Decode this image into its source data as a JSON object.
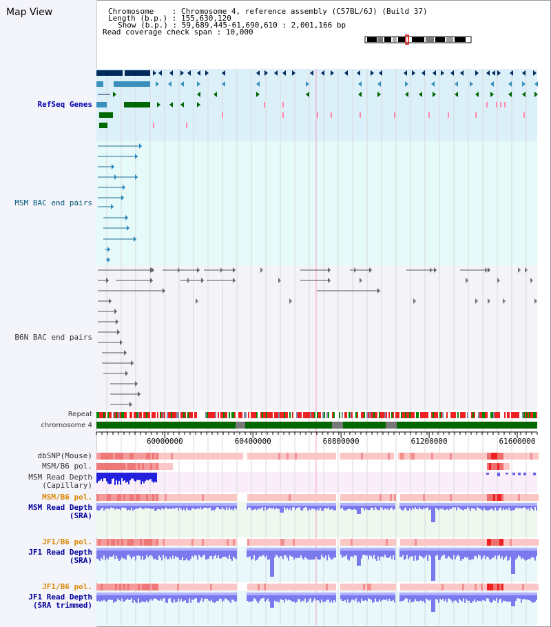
{
  "map_view": {
    "title": "Map View"
  },
  "header": {
    "chromosome_label": "Chromosome",
    "chromosome_value": "Chromosome 4, reference assembly (C57BL/6J) (Build 37)",
    "length_label": "Length (b.p.)",
    "length_value": "155,630,120",
    "show_label": "Show (b.p.)",
    "show_value": "59,689,445-61,690,610 : 2,001,166 bp",
    "coverage_label": "Read coverage check span",
    "coverage_value": "10,000"
  },
  "tracks": {
    "refseq": "RefSeq Genes",
    "msm_bac": "MSM BAC end pairs",
    "b6n_bac": "B6N BAC end pairs",
    "repeat": "Repeat",
    "chromosome": "chromosome 4",
    "dbsnp": "dbSNP(Mouse)",
    "msm_b6_pol": "MSM/B6 pol.",
    "msm_rd_cap_1": "MSM Read Depth",
    "msm_rd_cap_2": "(Capillary)",
    "msm_b6_pol2": "MSM/B6 pol.",
    "msm_rd_sra_1": "MSM Read Depth",
    "msm_rd_sra_2": "(SRA)",
    "jf1_b6_pol": "JF1/B6 pol.",
    "jf1_rd_sra_1": "JF1 Read Depth",
    "jf1_rd_sra_2": "(SRA)",
    "jf1_b6_pol2": "JF1/B6 pol.",
    "jf1_rd_trim_1": "JF1 Read Depth",
    "jf1_rd_trim_2": "(SRA trimmed)"
  },
  "axis": {
    "ticks": [
      "60000000",
      "60400000",
      "60800000",
      "61200000",
      "61600000"
    ],
    "tick_values": [
      60000000,
      60400000,
      60800000,
      61200000,
      61600000
    ],
    "range": [
      59689445,
      61690610
    ]
  },
  "colors": {
    "refseq_bg": "#dcf0fa",
    "msm_bg": "#e6fafa",
    "b6n_bg": "#f4f4f8",
    "gene_dark": "#002a5c",
    "gene_mid": "#3a8fbd",
    "gene_green": "#006600",
    "chrom_green": "#006600",
    "depth_blue": "#3333ee",
    "pol_red": "#ee2222"
  }
}
